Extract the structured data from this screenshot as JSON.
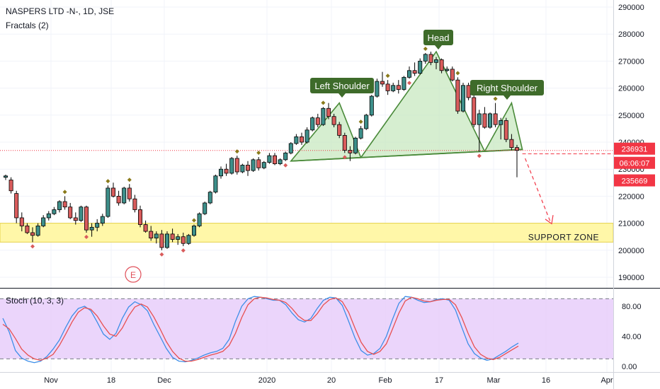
{
  "header": {
    "symbol_line": "NASPERS LTD -N-, 1D, JSE",
    "indicator_line": "Fractals (2)",
    "stoch_label": "Stoch (10, 3, 3)"
  },
  "annotations": {
    "left_shoulder": "Left Shoulder",
    "head": "Head",
    "right_shoulder": "Right Shoulder",
    "support_zone": "SUPPORT ZONE",
    "earnings_marker": "E"
  },
  "price_badges": {
    "last": "236931",
    "countdown": "06:06:07",
    "prev": "235669"
  },
  "colors": {
    "up": "#3d8f8a",
    "down": "#d95c5c",
    "pattern_fill": "#c8e8c0",
    "pattern_line": "#4a8a3a",
    "label_bg": "#3e6b2a",
    "support_fill": "#fff7a8",
    "stoch_bg": "#e6cbfa",
    "stoch_k": "#3d8ee8",
    "stoch_d": "#e85050",
    "badge_red": "#f23645",
    "fractal": "#8a7a1a"
  },
  "chart_data": [
    {
      "type": "candlestick",
      "title": "NASPERS LTD -N-, 1D, JSE",
      "y_ticks": [
        "290000",
        "280000",
        "270000",
        "260000",
        "250000",
        "240000",
        "230000",
        "220000",
        "210000",
        "200000",
        "190000"
      ],
      "x_ticks": [
        "Nov",
        "18",
        "Dec",
        "2020",
        "20",
        "Feb",
        "17",
        "Mar",
        "16",
        "Apr"
      ],
      "ylim": [
        180000,
        292000
      ],
      "support_zone": [
        203000,
        210000
      ],
      "neckline": [
        [
          115,
          233000
        ],
        [
          153,
          237500
        ]
      ],
      "candles": [
        [
          0,
          227000,
          228000,
          226000,
          227500
        ],
        [
          1,
          226000,
          227000,
          221000,
          222000
        ],
        [
          2,
          221000,
          222000,
          210000,
          212000
        ],
        [
          3,
          212000,
          214000,
          207000,
          209000
        ],
        [
          4,
          209000,
          210000,
          206000,
          206500
        ],
        [
          5,
          206500,
          208500,
          203000,
          205500
        ],
        [
          6,
          205500,
          210000,
          205000,
          209000
        ],
        [
          7,
          209000,
          213000,
          208500,
          212000
        ],
        [
          8,
          212000,
          214500,
          211000,
          213500
        ],
        [
          9,
          213500,
          216000,
          213000,
          215000
        ],
        [
          10,
          215000,
          218500,
          214000,
          218000
        ],
        [
          11,
          218000,
          220000,
          215000,
          216000
        ],
        [
          12,
          216000,
          217500,
          211500,
          212000
        ],
        [
          13,
          212000,
          214000,
          209500,
          211000
        ],
        [
          14,
          211000,
          216500,
          210500,
          216000
        ],
        [
          15,
          216000,
          216500,
          206500,
          207500
        ],
        [
          16,
          207500,
          210000,
          205000,
          208500
        ],
        [
          17,
          208500,
          211500,
          207000,
          210000
        ],
        [
          18,
          210000,
          213500,
          209000,
          212500
        ],
        [
          19,
          212500,
          224000,
          212000,
          223000
        ],
        [
          20,
          223000,
          225000,
          219500,
          220000
        ],
        [
          21,
          220000,
          222000,
          216500,
          217500
        ],
        [
          22,
          217500,
          223500,
          217000,
          223000
        ],
        [
          23,
          223000,
          224500,
          218000,
          219000
        ],
        [
          24,
          219000,
          220500,
          214000,
          215000
        ],
        [
          25,
          215000,
          216500,
          208500,
          209500
        ],
        [
          26,
          209500,
          211000,
          206500,
          207000
        ],
        [
          27,
          207000,
          209000,
          203500,
          204500
        ],
        [
          28,
          204500,
          207000,
          202500,
          206000
        ],
        [
          29,
          206000,
          207500,
          200000,
          201000
        ],
        [
          30,
          201000,
          207000,
          200500,
          206000
        ],
        [
          31,
          206000,
          208000,
          203000,
          204000
        ],
        [
          32,
          204000,
          206000,
          202000,
          205000
        ],
        [
          33,
          205000,
          206500,
          201500,
          202500
        ],
        [
          34,
          202500,
          206000,
          202000,
          205500
        ],
        [
          35,
          205500,
          209500,
          205000,
          209000
        ],
        [
          36,
          209000,
          214000,
          208500,
          213500
        ],
        [
          37,
          213500,
          218000,
          213000,
          217500
        ],
        [
          38,
          217500,
          222000,
          217000,
          221500
        ],
        [
          39,
          221500,
          228000,
          221000,
          227500
        ],
        [
          40,
          227500,
          231000,
          226500,
          230000
        ],
        [
          41,
          230000,
          232000,
          227500,
          228500
        ],
        [
          42,
          228500,
          234500,
          228000,
          234000
        ],
        [
          43,
          234000,
          235000,
          228000,
          229000
        ],
        [
          44,
          229000,
          232000,
          228500,
          231500
        ],
        [
          45,
          231500,
          233000,
          227500,
          229500
        ],
        [
          46,
          229500,
          234000,
          229000,
          233500
        ],
        [
          47,
          233500,
          234500,
          229500,
          230500
        ],
        [
          48,
          230500,
          233000,
          230000,
          232500
        ],
        [
          49,
          232500,
          236000,
          232000,
          235000
        ],
        [
          50,
          235000,
          236000,
          231500,
          232000
        ],
        [
          51,
          232000,
          234000,
          231500,
          233500
        ],
        [
          52,
          233500,
          236500,
          233000,
          236000
        ],
        [
          53,
          236000,
          240000,
          235500,
          239500
        ],
        [
          54,
          239500,
          243000,
          239000,
          242000
        ],
        [
          55,
          242000,
          243500,
          239000,
          240000
        ],
        [
          56,
          240000,
          245500,
          239500,
          244500
        ],
        [
          57,
          244500,
          249500,
          244000,
          249000
        ],
        [
          58,
          249000,
          250500,
          245500,
          246500
        ],
        [
          59,
          246500,
          253000,
          246000,
          252500
        ],
        [
          60,
          252500,
          254500,
          248500,
          249500
        ],
        [
          61,
          249500,
          250500,
          245500,
          246500
        ],
        [
          62,
          246500,
          247500,
          241500,
          242500
        ],
        [
          63,
          242500,
          243500,
          236000,
          237000
        ],
        [
          64,
          237000,
          238500,
          233000,
          236000
        ],
        [
          65,
          236000,
          242000,
          235500,
          241500
        ],
        [
          66,
          241500,
          246000,
          241000,
          245000
        ],
        [
          67,
          245000,
          250500,
          244500,
          250000
        ],
        [
          68,
          250000,
          257500,
          249500,
          257000
        ],
        [
          69,
          257000,
          263500,
          256500,
          262500
        ],
        [
          70,
          262500,
          266000,
          260500,
          261500
        ],
        [
          71,
          261500,
          263000,
          257500,
          259000
        ],
        [
          72,
          259000,
          262000,
          258500,
          261000
        ],
        [
          73,
          261000,
          263000,
          258000,
          259500
        ],
        [
          74,
          259500,
          264500,
          259000,
          264000
        ],
        [
          75,
          264000,
          268000,
          263500,
          266500
        ],
        [
          76,
          266500,
          269500,
          264500,
          265500
        ],
        [
          77,
          265500,
          271000,
          265000,
          270000
        ],
        [
          78,
          270000,
          273000,
          269000,
          272500
        ],
        [
          79,
          272500,
          273500,
          268500,
          269500
        ],
        [
          80,
          269500,
          271500,
          267000,
          270500
        ],
        [
          81,
          270500,
          271000,
          265500,
          266500
        ],
        [
          82,
          266500,
          268000,
          266000,
          267000
        ],
        [
          83,
          267000,
          268000,
          262500,
          263000
        ],
        [
          84,
          263000,
          264000,
          250500,
          251500
        ],
        [
          85,
          251500,
          262000,
          251000,
          261000
        ],
        [
          86,
          261000,
          262000,
          255500,
          256500
        ],
        [
          87,
          256500,
          257500,
          245500,
          246500
        ],
        [
          88,
          246500,
          252000,
          236500,
          250500
        ],
        [
          89,
          250500,
          253000,
          245000,
          245500
        ],
        [
          90,
          245500,
          251000,
          245000,
          250500
        ],
        [
          91,
          250500,
          254500,
          245500,
          246500
        ],
        [
          92,
          246500,
          249000,
          241000,
          248000
        ],
        [
          93,
          248000,
          249000,
          240000,
          241000
        ],
        [
          94,
          241000,
          243000,
          237000,
          238000
        ],
        [
          95,
          238000,
          239000,
          227000,
          236931
        ]
      ],
      "fractals_up": [
        11,
        19,
        23,
        35,
        43,
        47,
        59,
        66,
        71,
        78,
        84,
        91
      ],
      "fractals_down": [
        5,
        15,
        29,
        33,
        52,
        63,
        75,
        88
      ]
    },
    {
      "type": "line",
      "title": "Stoch (10, 3, 3)",
      "y_ticks": [
        "80.00",
        "40.00",
        "0.00"
      ],
      "ylim": [
        -5,
        102
      ],
      "bands": [
        20,
        80
      ],
      "series": [
        {
          "name": "%K",
          "values": [
            64,
            46,
            21,
            11,
            7,
            5,
            7,
            13,
            23,
            35,
            52,
            67,
            77,
            80,
            74,
            59,
            43,
            36,
            44,
            64,
            79,
            86,
            82,
            74,
            56,
            40,
            24,
            12,
            7,
            6,
            8,
            11,
            15,
            18,
            20,
            24,
            36,
            60,
            80,
            90,
            93,
            92,
            90,
            88,
            88,
            82,
            71,
            62,
            59,
            64,
            77,
            88,
            92,
            91,
            81,
            60,
            38,
            21,
            15,
            17,
            24,
            40,
            63,
            84,
            93,
            92,
            88,
            85,
            86,
            89,
            90,
            88,
            75,
            52,
            30,
            17,
            11,
            8,
            10,
            15,
            20,
            26,
            31
          ]
        },
        {
          "name": "%D",
          "values": [
            56,
            50,
            37,
            23,
            15,
            10,
            8,
            11,
            16,
            28,
            43,
            59,
            72,
            78,
            76,
            67,
            54,
            43,
            40,
            51,
            67,
            79,
            83,
            79,
            66,
            50,
            33,
            20,
            11,
            7,
            7,
            9,
            12,
            15,
            17,
            20,
            28,
            44,
            65,
            82,
            90,
            92,
            91,
            89,
            88,
            85,
            77,
            67,
            61,
            61,
            70,
            82,
            89,
            91,
            86,
            72,
            51,
            32,
            20,
            16,
            20,
            30,
            50,
            71,
            87,
            92,
            90,
            87,
            86,
            88,
            89,
            89,
            82,
            65,
            44,
            26,
            16,
            11,
            9,
            12,
            17,
            22,
            27
          ]
        }
      ]
    }
  ]
}
